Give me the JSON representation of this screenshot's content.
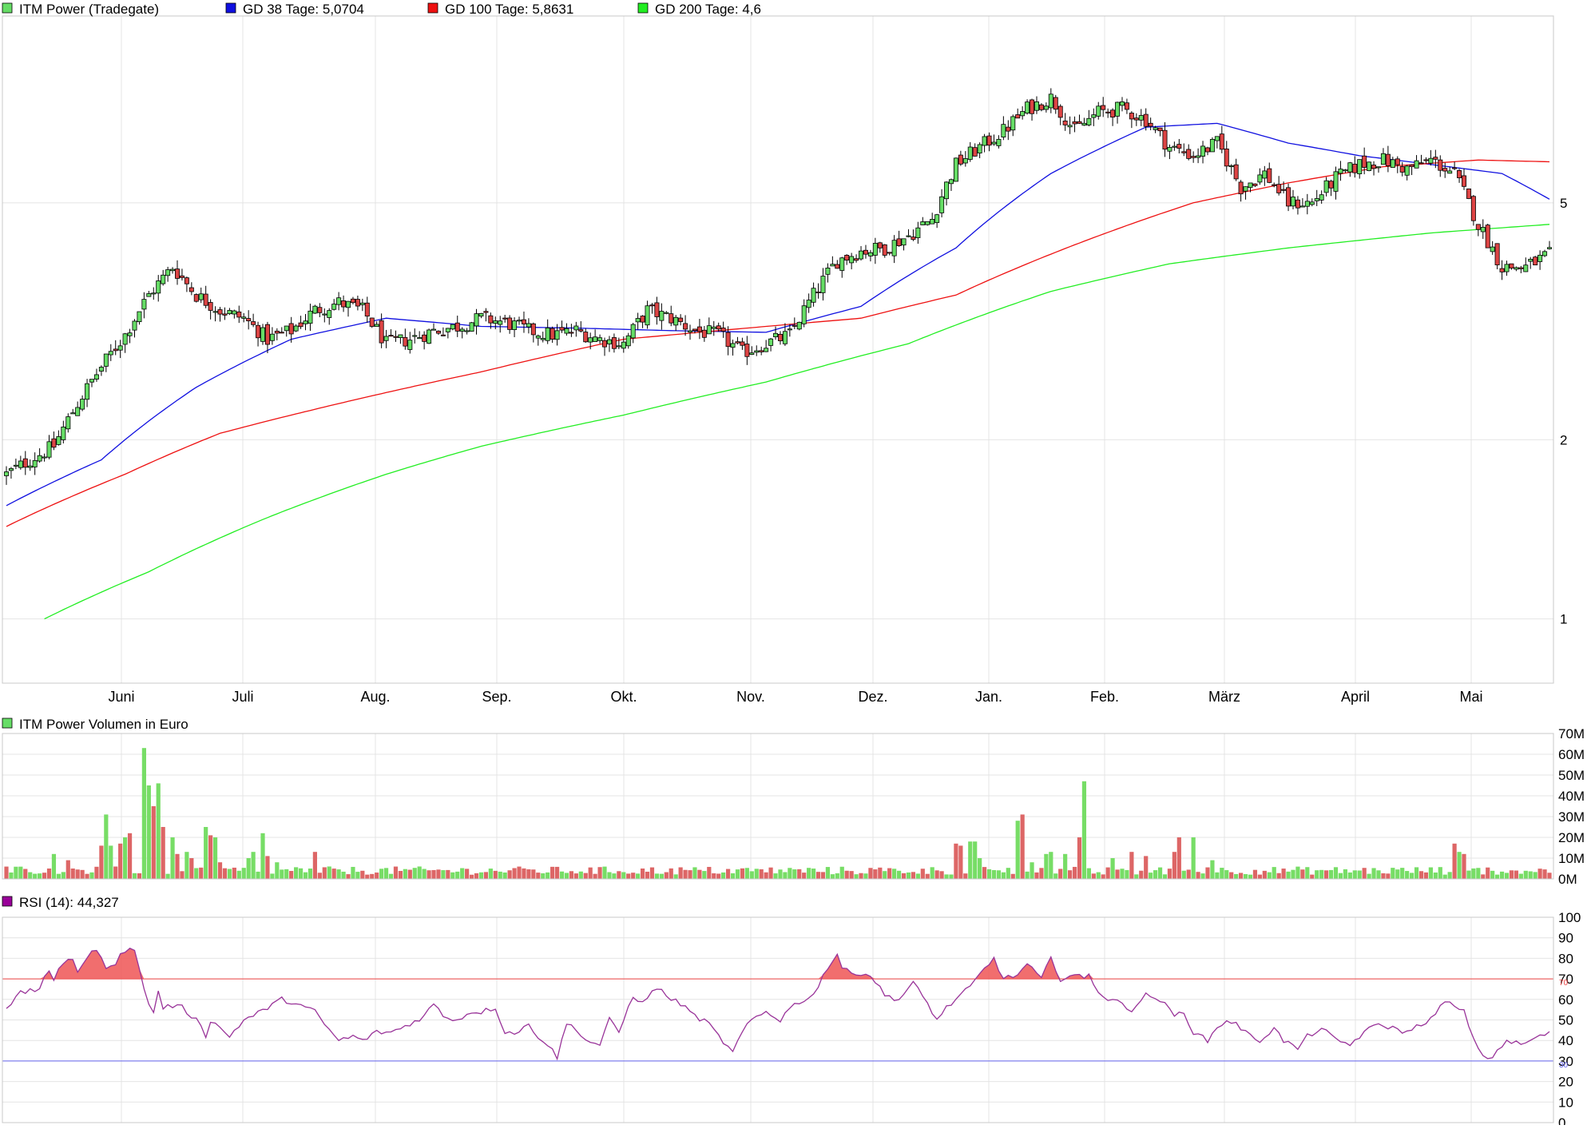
{
  "colors": {
    "price_series": "#66dd66",
    "ma38": "#1010e0",
    "ma100": "#ee1111",
    "ma200": "#22ee22",
    "up_candle": "#66dd66",
    "down_candle": "#dd4444",
    "rsi_line": "#993399",
    "rsi_swatch": "#990099",
    "rsi_upper": "#ee4444",
    "rsi_lower": "#6666ee",
    "grid": "#e4e4e4"
  },
  "legend": [
    {
      "label": "ITM Power (Tradegate)",
      "color": "#66dd66"
    },
    {
      "label": "GD 38 Tage: 5,0704",
      "color": "#1010e0"
    },
    {
      "label": "GD 100 Tage: 5,8631",
      "color": "#ee1111"
    },
    {
      "label": "GD 200 Tage: 4,6",
      "color": "#22ee22"
    }
  ],
  "volume_panel": {
    "title": "ITM Power Volumen in Euro",
    "color": "#66dd66"
  },
  "rsi_panel": {
    "title": "RSI (14): 44,327",
    "color": "#990099",
    "upper_label": "70",
    "lower_label": "30"
  },
  "chart_data": [
    {
      "type": "line",
      "title": "ITM Power (Tradegate)",
      "scale": "log",
      "ylim": [
        0.78,
        10.3
      ],
      "y_ticks": [
        "5",
        "2",
        "1"
      ],
      "y_tick_values": [
        5,
        2,
        1
      ],
      "x_labels": [
        "Juni",
        "Juli",
        "Aug.",
        "Sep.",
        "Okt.",
        "Nov.",
        "Dez.",
        "Jan.",
        "Feb.",
        "März",
        "April",
        "Mai"
      ],
      "grid": true,
      "legend_position": "top-left",
      "price_anchors": [
        [
          0,
          1.75
        ],
        [
          5,
          1.85
        ],
        [
          10,
          1.95
        ],
        [
          15,
          2.3
        ],
        [
          20,
          2.65
        ],
        [
          25,
          3.0
        ],
        [
          30,
          3.5
        ],
        [
          35,
          3.9
        ],
        [
          40,
          3.5
        ],
        [
          45,
          3.3
        ],
        [
          50,
          3.2
        ],
        [
          55,
          2.95
        ],
        [
          60,
          3.05
        ],
        [
          65,
          3.3
        ],
        [
          70,
          3.4
        ],
        [
          75,
          3.3
        ],
        [
          80,
          2.9
        ],
        [
          85,
          2.95
        ],
        [
          90,
          3.05
        ],
        [
          95,
          3.1
        ],
        [
          100,
          3.2
        ],
        [
          105,
          3.15
        ],
        [
          110,
          3.05
        ],
        [
          115,
          3.0
        ],
        [
          120,
          3.05
        ],
        [
          125,
          2.95
        ],
        [
          130,
          2.9
        ],
        [
          135,
          3.3
        ],
        [
          140,
          3.2
        ],
        [
          145,
          3.05
        ],
        [
          150,
          3.0
        ],
        [
          155,
          2.8
        ],
        [
          160,
          2.9
        ],
        [
          165,
          3.0
        ],
        [
          170,
          3.5
        ],
        [
          175,
          4.0
        ],
        [
          180,
          4.15
        ],
        [
          185,
          4.2
        ],
        [
          190,
          4.4
        ],
        [
          195,
          4.7
        ],
        [
          200,
          5.8
        ],
        [
          205,
          6.2
        ],
        [
          210,
          6.6
        ],
        [
          215,
          7.2
        ],
        [
          220,
          7.5
        ],
        [
          225,
          6.6
        ],
        [
          230,
          7.1
        ],
        [
          235,
          7.2
        ],
        [
          240,
          6.9
        ],
        [
          245,
          6.2
        ],
        [
          250,
          6.0
        ],
        [
          255,
          6.3
        ],
        [
          260,
          5.3
        ],
        [
          265,
          5.6
        ],
        [
          270,
          5.0
        ],
        [
          275,
          5.0
        ],
        [
          280,
          5.5
        ],
        [
          285,
          5.8
        ],
        [
          290,
          5.9
        ],
        [
          295,
          5.7
        ],
        [
          300,
          5.9
        ],
        [
          305,
          5.6
        ],
        [
          310,
          4.6
        ],
        [
          315,
          3.9
        ],
        [
          320,
          3.9
        ],
        [
          325,
          4.1
        ]
      ],
      "series": [
        {
          "name": "GD 38 Tage",
          "anchors": [
            [
              0,
              1.55
            ],
            [
              20,
              1.85
            ],
            [
              40,
              2.45
            ],
            [
              60,
              2.95
            ],
            [
              80,
              3.2
            ],
            [
              100,
              3.1
            ],
            [
              120,
              3.08
            ],
            [
              140,
              3.05
            ],
            [
              160,
              3.03
            ],
            [
              180,
              3.35
            ],
            [
              200,
              4.2
            ],
            [
              220,
              5.6
            ],
            [
              240,
              6.7
            ],
            [
              255,
              6.8
            ],
            [
              270,
              6.3
            ],
            [
              285,
              6.0
            ],
            [
              300,
              5.8
            ],
            [
              315,
              5.6
            ],
            [
              325,
              5.07
            ]
          ]
        },
        {
          "name": "GD 100 Tage",
          "anchors": [
            [
              0,
              1.43
            ],
            [
              25,
              1.75
            ],
            [
              45,
              2.05
            ],
            [
              70,
              2.3
            ],
            [
              100,
              2.6
            ],
            [
              130,
              2.95
            ],
            [
              160,
              3.1
            ],
            [
              180,
              3.2
            ],
            [
              200,
              3.5
            ],
            [
              230,
              4.4
            ],
            [
              250,
              5.0
            ],
            [
              270,
              5.4
            ],
            [
              290,
              5.75
            ],
            [
              310,
              5.9
            ],
            [
              325,
              5.86
            ]
          ]
        },
        {
          "name": "GD 200 Tage",
          "anchors": [
            [
              8,
              1.0
            ],
            [
              30,
              1.2
            ],
            [
              55,
              1.48
            ],
            [
              80,
              1.75
            ],
            [
              100,
              1.95
            ],
            [
              130,
              2.2
            ],
            [
              160,
              2.5
            ],
            [
              190,
              2.9
            ],
            [
              220,
              3.55
            ],
            [
              245,
              3.95
            ],
            [
              270,
              4.2
            ],
            [
              300,
              4.45
            ],
            [
              325,
              4.6
            ]
          ]
        }
      ]
    },
    {
      "type": "bar",
      "title": "ITM Power Volumen in Euro",
      "ylim": [
        0,
        70
      ],
      "y_ticks": [
        "70M",
        "60M",
        "50M",
        "40M",
        "30M",
        "20M",
        "10M",
        "0M"
      ],
      "y_tick_values": [
        70,
        60,
        50,
        40,
        30,
        20,
        10,
        0
      ],
      "unit": "M",
      "spikes": [
        [
          8,
          3
        ],
        [
          9,
          5
        ],
        [
          10,
          12
        ],
        [
          13,
          9
        ],
        [
          14,
          5
        ],
        [
          20,
          16
        ],
        [
          21,
          31
        ],
        [
          22,
          16
        ],
        [
          24,
          17
        ],
        [
          25,
          20
        ],
        [
          26,
          22
        ],
        [
          29,
          63
        ],
        [
          30,
          45
        ],
        [
          31,
          35
        ],
        [
          32,
          46
        ],
        [
          33,
          25
        ],
        [
          35,
          20
        ],
        [
          36,
          12
        ],
        [
          38,
          13
        ],
        [
          39,
          10
        ],
        [
          42,
          25
        ],
        [
          43,
          21
        ],
        [
          44,
          20
        ],
        [
          45,
          8
        ],
        [
          51,
          10
        ],
        [
          52,
          13
        ],
        [
          54,
          22
        ],
        [
          55,
          11
        ],
        [
          57,
          8
        ],
        [
          65,
          13
        ],
        [
          200,
          17
        ],
        [
          201,
          16
        ],
        [
          203,
          18
        ],
        [
          204,
          18
        ],
        [
          205,
          10
        ],
        [
          213,
          28
        ],
        [
          214,
          31
        ],
        [
          216,
          8
        ],
        [
          219,
          12
        ],
        [
          220,
          13
        ],
        [
          223,
          12
        ],
        [
          226,
          20
        ],
        [
          227,
          47
        ],
        [
          233,
          10
        ],
        [
          237,
          13
        ],
        [
          240,
          11
        ],
        [
          246,
          13
        ],
        [
          247,
          20
        ],
        [
          250,
          20
        ],
        [
          254,
          9
        ],
        [
          305,
          17
        ],
        [
          306,
          13
        ],
        [
          307,
          12
        ]
      ]
    },
    {
      "type": "line",
      "title": "RSI (14): 44,327",
      "ylim": [
        0,
        100
      ],
      "y_ticks": [
        "100",
        "90",
        "80",
        "70",
        "60",
        "50",
        "40",
        "30",
        "20",
        "10",
        "0"
      ],
      "y_tick_values": [
        100,
        90,
        80,
        70,
        60,
        50,
        40,
        30,
        20,
        10,
        0
      ],
      "upper_band": 70,
      "lower_band": 30,
      "anchors": [
        [
          0,
          56
        ],
        [
          3,
          63
        ],
        [
          5,
          64
        ],
        [
          7,
          65
        ],
        [
          8,
          72
        ],
        [
          9,
          74
        ],
        [
          10,
          68
        ],
        [
          11,
          74
        ],
        [
          13,
          80
        ],
        [
          14,
          80
        ],
        [
          15,
          74
        ],
        [
          17,
          80
        ],
        [
          19,
          85
        ],
        [
          20,
          80
        ],
        [
          21,
          74
        ],
        [
          23,
          78
        ],
        [
          24,
          83
        ],
        [
          26,
          85
        ],
        [
          27,
          83
        ],
        [
          29,
          66
        ],
        [
          30,
          57
        ],
        [
          31,
          54
        ],
        [
          32,
          64
        ],
        [
          33,
          56
        ],
        [
          35,
          57
        ],
        [
          37,
          56
        ],
        [
          40,
          50
        ],
        [
          41,
          48
        ],
        [
          42,
          42
        ],
        [
          43,
          50
        ],
        [
          47,
          42
        ],
        [
          50,
          50
        ],
        [
          52,
          52
        ],
        [
          55,
          56
        ],
        [
          58,
          60
        ],
        [
          61,
          58
        ],
        [
          63,
          56
        ],
        [
          65,
          54
        ],
        [
          68,
          45
        ],
        [
          70,
          40
        ],
        [
          73,
          42
        ],
        [
          75,
          40
        ],
        [
          78,
          44
        ],
        [
          81,
          44
        ],
        [
          83,
          46
        ],
        [
          85,
          48
        ],
        [
          88,
          52
        ],
        [
          90,
          58
        ],
        [
          92,
          52
        ],
        [
          95,
          50
        ],
        [
          98,
          54
        ],
        [
          100,
          54
        ],
        [
          103,
          56
        ],
        [
          105,
          44
        ],
        [
          108,
          44
        ],
        [
          110,
          48
        ],
        [
          112,
          42
        ],
        [
          114,
          38
        ],
        [
          116,
          32
        ],
        [
          118,
          48
        ],
        [
          120,
          46
        ],
        [
          122,
          40
        ],
        [
          125,
          38
        ],
        [
          127,
          50
        ],
        [
          129,
          44
        ],
        [
          132,
          62
        ],
        [
          134,
          58
        ],
        [
          137,
          66
        ],
        [
          140,
          60
        ],
        [
          142,
          58
        ],
        [
          145,
          52
        ],
        [
          148,
          48
        ],
        [
          150,
          42
        ],
        [
          153,
          34
        ],
        [
          155,
          44
        ],
        [
          157,
          50
        ],
        [
          160,
          54
        ],
        [
          163,
          50
        ],
        [
          165,
          56
        ],
        [
          168,
          60
        ],
        [
          170,
          62
        ],
        [
          172,
          72
        ],
        [
          175,
          82
        ],
        [
          176,
          74
        ],
        [
          177,
          75
        ],
        [
          180,
          72
        ],
        [
          182,
          72
        ],
        [
          185,
          62
        ],
        [
          188,
          60
        ],
        [
          191,
          68
        ],
        [
          194,
          58
        ],
        [
          196,
          50
        ],
        [
          198,
          56
        ],
        [
          200,
          60
        ],
        [
          203,
          66
        ],
        [
          205,
          72
        ],
        [
          208,
          80
        ],
        [
          210,
          70
        ],
        [
          213,
          72
        ],
        [
          215,
          77
        ],
        [
          218,
          70
        ],
        [
          220,
          80
        ],
        [
          222,
          70
        ],
        [
          225,
          72
        ],
        [
          227,
          70
        ],
        [
          228,
          72
        ],
        [
          230,
          64
        ],
        [
          232,
          60
        ],
        [
          235,
          58
        ],
        [
          237,
          55
        ],
        [
          240,
          62
        ],
        [
          243,
          60
        ],
        [
          246,
          52
        ],
        [
          248,
          54
        ],
        [
          250,
          44
        ],
        [
          253,
          40
        ],
        [
          255,
          46
        ],
        [
          257,
          50
        ],
        [
          259,
          48
        ],
        [
          262,
          42
        ],
        [
          264,
          40
        ],
        [
          267,
          46
        ],
        [
          269,
          40
        ],
        [
          272,
          36
        ],
        [
          274,
          42
        ],
        [
          277,
          46
        ],
        [
          280,
          40
        ],
        [
          283,
          38
        ],
        [
          286,
          44
        ],
        [
          289,
          48
        ],
        [
          292,
          46
        ],
        [
          295,
          44
        ],
        [
          298,
          48
        ],
        [
          301,
          52
        ],
        [
          303,
          60
        ],
        [
          305,
          56
        ],
        [
          307,
          54
        ],
        [
          309,
          40
        ],
        [
          312,
          30
        ],
        [
          314,
          35
        ],
        [
          316,
          40
        ],
        [
          319,
          38
        ],
        [
          321,
          40
        ],
        [
          323,
          42
        ],
        [
          325,
          44
        ]
      ]
    }
  ]
}
